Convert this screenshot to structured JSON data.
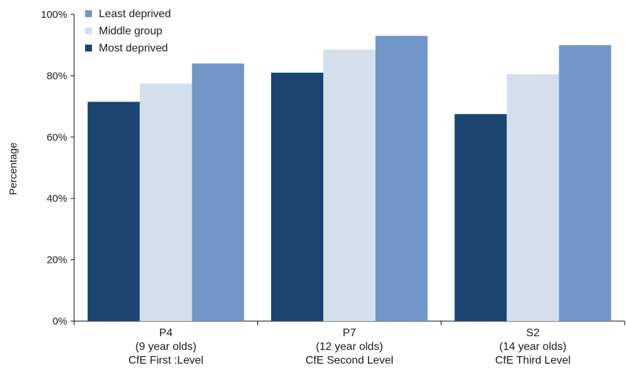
{
  "chart_data": {
    "type": "bar",
    "ylabel": "Percentage",
    "xlabel": "",
    "ylim": [
      0,
      100
    ],
    "y_ticks": [
      "0%",
      "20%",
      "40%",
      "60%",
      "80%",
      "100%"
    ],
    "grid": false,
    "legend_position": "top-left",
    "categories": [
      [
        "P4",
        "(9 year olds)",
        "CfE First :Level"
      ],
      [
        "P7",
        "(12 year olds)",
        "CfE Second Level"
      ],
      [
        "S2",
        "(14 year olds)",
        "CfE Third Level"
      ]
    ],
    "series": [
      {
        "name": "Most deprived",
        "color": "#1b4470",
        "values": [
          71.5,
          81,
          67.5
        ]
      },
      {
        "name": "Middle group",
        "color": "#d3dfed",
        "values": [
          77.5,
          88.5,
          80.5
        ]
      },
      {
        "name": "Least deprived",
        "color": "#7396c8",
        "values": [
          84,
          93,
          90
        ]
      }
    ],
    "legend_order": [
      "Least deprived",
      "Middle group",
      "Most deprived"
    ]
  }
}
